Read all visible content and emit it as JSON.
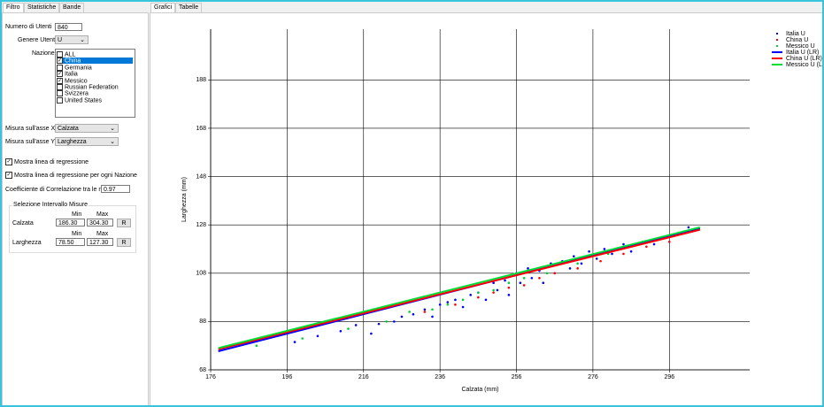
{
  "left_tabs": [
    "Filtro",
    "Statistiche",
    "Bande"
  ],
  "right_tabs": [
    "Grafici",
    "Tabelle"
  ],
  "form": {
    "users_label": "Numero di Utenti",
    "users_value": "840",
    "gender_label": "Genere Utente",
    "gender_value": "U",
    "nation_label": "Nazione",
    "nations": [
      {
        "label": "ALL",
        "checked": false,
        "selected": false
      },
      {
        "label": "China",
        "checked": true,
        "selected": true
      },
      {
        "label": "Germania",
        "checked": false,
        "selected": false
      },
      {
        "label": "Italia",
        "checked": true,
        "selected": false
      },
      {
        "label": "Messico",
        "checked": true,
        "selected": false
      },
      {
        "label": "Russian Federation",
        "checked": false,
        "selected": false
      },
      {
        "label": "Svizzera",
        "checked": false,
        "selected": false
      },
      {
        "label": "United States",
        "checked": false,
        "selected": false
      }
    ],
    "x_label": "Misura sull'asse X",
    "x_value": "Calzata",
    "y_label": "Misura sull'asse Y",
    "y_value": "Larghezza",
    "reg_label": "Mostra linea di regressione",
    "reg_checked": true,
    "reg_nation_label": "Mostra linea di regressione per ogni Nazione",
    "reg_nation_checked": true,
    "corr_label": "Coefficiente di Correlazione tra le misure",
    "corr_value": "0.97",
    "group_title": "Selezione Intervallo Misure",
    "ranges": [
      {
        "min_label": "Min",
        "max_label": "Max",
        "label": "Calzata",
        "min": "186.30",
        "max": "304.30",
        "button": "R"
      },
      {
        "min_label": "Min",
        "max_label": "Max",
        "label": "Larghezza",
        "min": "78.50",
        "max": "127.30",
        "button": "R"
      }
    ]
  },
  "chart_data": {
    "type": "scatter",
    "x_label": "Calzata (mm)",
    "y_label": "Larghezza (mm)",
    "xlim": [
      176,
      317
    ],
    "ylim": [
      68,
      209
    ],
    "xticks": [
      176,
      196,
      216,
      236,
      256,
      276,
      296
    ],
    "yticks": [
      68,
      88,
      108,
      128,
      148,
      168,
      188
    ],
    "grid": true,
    "legend": "top-right",
    "series": [
      {
        "name": "Italia U",
        "color": "#0000ff",
        "mode": "points",
        "x": [
          198,
          204,
          210,
          214,
          218,
          220,
          224,
          226,
          229,
          232,
          234,
          236,
          238,
          240,
          242,
          244,
          246,
          248,
          250,
          251,
          253,
          254,
          256,
          257,
          259,
          260,
          262,
          263,
          265,
          266,
          268,
          270,
          271,
          273,
          275,
          277,
          279,
          281,
          284,
          286,
          289,
          292,
          295,
          298,
          301
        ],
        "values": [
          79.5,
          82,
          84,
          86.5,
          83,
          87,
          88,
          90,
          91,
          93,
          90,
          95,
          96,
          97,
          94,
          99,
          100,
          97,
          104,
          101,
          105,
          99,
          108,
          104,
          110,
          106,
          109,
          104,
          112,
          108,
          113,
          110,
          115,
          112,
          117,
          114,
          118,
          116,
          120,
          117,
          121,
          120,
          123,
          124,
          127
        ]
      },
      {
        "name": "China  U",
        "color": "#ff0000",
        "mode": "points",
        "x": [
          232,
          240,
          246,
          250,
          254,
          258,
          262,
          266,
          272,
          278,
          284,
          290,
          296
        ],
        "values": [
          92,
          95,
          98,
          100,
          102,
          103,
          106,
          108,
          110,
          113,
          116,
          119,
          121
        ]
      },
      {
        "name": "Messico U",
        "color": "#00cc33",
        "mode": "points",
        "x": [
          188,
          200,
          212,
          222,
          228,
          234,
          238,
          242,
          246,
          250,
          254,
          258,
          264,
          272,
          280
        ],
        "values": [
          78,
          81,
          85,
          88,
          92,
          93,
          95,
          97,
          100,
          101,
          104,
          106,
          108,
          112,
          116
        ]
      },
      {
        "name": "Italia U (LR)",
        "color": "#0000ff",
        "mode": "line",
        "x": [
          178,
          304
        ],
        "values": [
          75.7,
          126.6
        ]
      },
      {
        "name": "China  U (LR)",
        "color": "#ff0000",
        "mode": "line",
        "x": [
          178,
          304
        ],
        "values": [
          76.5,
          126
        ]
      },
      {
        "name": "Messico U (LR)",
        "color": "#00dd33",
        "mode": "line",
        "x": [
          178,
          304
        ],
        "values": [
          77,
          127
        ]
      }
    ]
  }
}
